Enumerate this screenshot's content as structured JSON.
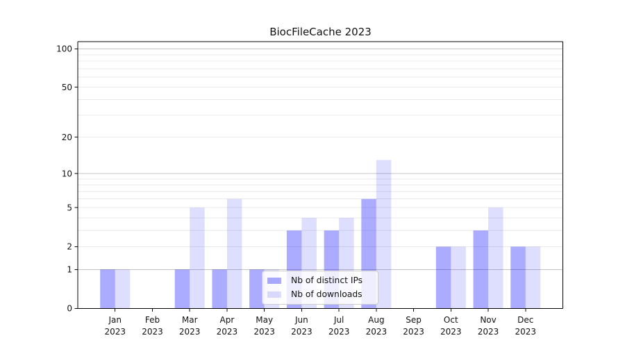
{
  "title": "BiocFileCache 2023",
  "chart_data": {
    "type": "bar",
    "title": "BiocFileCache 2023",
    "categories": [
      "Jan 2023",
      "Feb 2023",
      "Mar 2023",
      "Apr 2023",
      "May 2023",
      "Jun 2023",
      "Jul 2023",
      "Aug 2023",
      "Sep 2023",
      "Oct 2023",
      "Nov 2023",
      "Dec 2023"
    ],
    "series": [
      {
        "name": "Nb of distinct IPs",
        "color": "#ababff",
        "fill": "rgba(0,0,255,0.33)",
        "values": [
          1,
          0,
          1,
          1,
          1,
          3,
          3,
          6,
          0,
          2,
          3,
          2
        ]
      },
      {
        "name": "Nb of downloads",
        "color": "#ddddff",
        "fill": "rgba(0,0,255,0.13)",
        "values": [
          1,
          0,
          5,
          6,
          1,
          4,
          4,
          13,
          0,
          2,
          5,
          2
        ]
      }
    ],
    "xlabel": "",
    "ylabel": "",
    "y_scale": "log10(1+y)",
    "ylim": [
      0,
      115
    ],
    "y_tick_values": [
      0,
      1,
      2,
      5,
      10,
      20,
      50,
      100
    ],
    "y_tick_labels": [
      "0",
      "1",
      "2",
      "5",
      "10",
      "20",
      "50",
      "100"
    ],
    "grid": "both",
    "legend_position": "inside-bottom-center"
  },
  "legend": {
    "items": [
      {
        "label": "Nb of distinct IPs"
      },
      {
        "label": "Nb of downloads"
      }
    ]
  },
  "colors": {
    "bar_dark": "#ababff",
    "bar_light": "#ddddff",
    "grid_major": "#c4c4c4",
    "grid_minor": "#e9e9e9",
    "axis": "#000000",
    "text": "#111111",
    "background": "#ffffff"
  }
}
